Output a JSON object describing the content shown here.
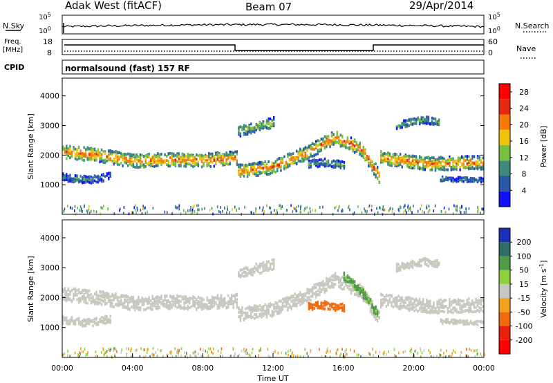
{
  "header": {
    "station": "Adak West (fitACF)",
    "beam": "Beam 07",
    "date": "29/Apr/2014"
  },
  "noise_panel": {
    "left_label": "N.Sky",
    "right_label": "N.Search",
    "left_ticks": [
      "10^5",
      "10^0"
    ],
    "right_ticks": [
      "10^5",
      "10^0"
    ]
  },
  "freq_panel": {
    "left_label_1": "Freq.",
    "left_label_2": "[MHz]",
    "right_label": "Nave",
    "left_ticks": [
      "18",
      "8"
    ],
    "right_ticks": [
      "60",
      "0"
    ]
  },
  "cpid_panel": {
    "label": "CPID",
    "value": "normalsound (fast) 157 RF"
  },
  "time_axis": {
    "title": "Time UT",
    "ticks": [
      "00:00",
      "04:00",
      "08:00",
      "12:00",
      "16:00",
      "20:00",
      "00:00"
    ]
  },
  "chart_data": [
    {
      "type": "heatmap",
      "title": "",
      "xlabel": "Time UT",
      "ylabel": "Slant Range [km]",
      "xlim": [
        0,
        24
      ],
      "ylim": [
        0,
        4600
      ],
      "yticks": [
        "1000",
        "2000",
        "3000",
        "4000"
      ],
      "colorbar": {
        "label": "Power [dB]",
        "ticks": [
          "4",
          "8",
          "12",
          "16",
          "20",
          "24",
          "28"
        ],
        "range": [
          0,
          30
        ]
      },
      "colors": [
        "#1010ff",
        "#2a57a8",
        "#3d8a7c",
        "#79bf3e",
        "#f3c20d",
        "#f57a0a",
        "#e62a10",
        "#ff0000"
      ],
      "bands": [
        {
          "name": "main",
          "start": 0.0,
          "end": 24.0,
          "center": [
            [
              0,
              2100
            ],
            [
              2,
              2000
            ],
            [
              4,
              1800
            ],
            [
              6,
              1850
            ],
            [
              8,
              1820
            ],
            [
              9.9,
              1900
            ],
            [
              10,
              1450
            ],
            [
              12,
              1600
            ],
            [
              14,
              2100
            ],
            [
              15.5,
              2600
            ],
            [
              17,
              2200
            ],
            [
              18,
              1300
            ],
            [
              18.1,
              1900
            ],
            [
              21,
              1700
            ],
            [
              24,
              1750
            ]
          ],
          "width": 450,
          "power": 22
        },
        {
          "name": "lower",
          "start": 0.0,
          "end": 2.8,
          "center": [
            [
              0,
              1250
            ],
            [
              1.5,
              1150
            ],
            [
              2.8,
              1300
            ]
          ],
          "width": 250,
          "power": 9
        },
        {
          "name": "lower-late",
          "start": 21.5,
          "end": 24.0,
          "center": [
            [
              21.5,
              1200
            ],
            [
              24,
              1150
            ]
          ],
          "width": 150,
          "power": 8
        },
        {
          "name": "upper-late",
          "start": 19.0,
          "end": 21.5,
          "center": [
            [
              19,
              3000
            ],
            [
              20.5,
              3200
            ],
            [
              21.5,
              3100
            ]
          ],
          "width": 250,
          "power": 12
        },
        {
          "name": "upper-morning",
          "start": 10.0,
          "end": 12.0,
          "center": [
            [
              10,
              2800
            ],
            [
              12,
              3100
            ]
          ],
          "width": 350,
          "power": 14
        },
        {
          "name": "patches",
          "start": 14.0,
          "end": 16.0,
          "center": [
            [
              14,
              1700
            ],
            [
              15,
              1750
            ],
            [
              16,
              1650
            ]
          ],
          "width": 250,
          "power": 10
        }
      ]
    },
    {
      "type": "heatmap",
      "title": "",
      "xlabel": "Time UT",
      "ylabel": "Slant Range [km]",
      "xlim": [
        0,
        24
      ],
      "ylim": [
        0,
        4600
      ],
      "yticks": [
        "1000",
        "2000",
        "3000",
        "4000"
      ],
      "colorbar": {
        "label": "Velocity [m s^-1]",
        "ticks": [
          "200",
          "100",
          "50",
          "15",
          "-15",
          "-50",
          "-100",
          "-200"
        ],
        "range": [
          -250,
          250
        ]
      },
      "colors": [
        "#1b2fb8",
        "#2f6e66",
        "#4e9c45",
        "#8fd13a",
        "#c8c8c0",
        "#f2a01e",
        "#f26a0e",
        "#e8200c",
        "#ff0000"
      ],
      "bands": [
        {
          "name": "main",
          "start": 0.0,
          "end": 24.0,
          "center": [
            [
              0,
              2100
            ],
            [
              2,
              2000
            ],
            [
              4,
              1800
            ],
            [
              6,
              1850
            ],
            [
              8,
              1820
            ],
            [
              9.9,
              1900
            ],
            [
              10,
              1450
            ],
            [
              12,
              1600
            ],
            [
              14,
              2100
            ],
            [
              15.5,
              2600
            ],
            [
              17,
              2200
            ],
            [
              18,
              1300
            ],
            [
              18.1,
              1900
            ],
            [
              21,
              1700
            ],
            [
              24,
              1750
            ]
          ],
          "width": 450,
          "velocity": 0
        },
        {
          "name": "lower",
          "start": 0.0,
          "end": 2.8,
          "center": [
            [
              0,
              1250
            ],
            [
              1.5,
              1150
            ],
            [
              2.8,
              1300
            ]
          ],
          "width": 250,
          "velocity": 0
        },
        {
          "name": "lower-late",
          "start": 21.5,
          "end": 24.0,
          "center": [
            [
              21.5,
              1200
            ],
            [
              24,
              1150
            ]
          ],
          "width": 150,
          "velocity": 0
        },
        {
          "name": "upper-late",
          "start": 19.0,
          "end": 21.5,
          "center": [
            [
              19,
              3000
            ],
            [
              20.5,
              3200
            ],
            [
              21.5,
              3100
            ]
          ],
          "width": 250,
          "velocity": 0
        },
        {
          "name": "upper-morning",
          "start": 10.0,
          "end": 12.0,
          "center": [
            [
              10,
              2800
            ],
            [
              12,
              3100
            ]
          ],
          "width": 350,
          "velocity": 0
        },
        {
          "name": "patches",
          "start": 14.0,
          "end": 16.0,
          "center": [
            [
              14,
              1700
            ],
            [
              15,
              1750
            ],
            [
              16,
              1650
            ]
          ],
          "width": 250,
          "velocity": -80
        },
        {
          "name": "green-streak",
          "start": 16.0,
          "end": 18.0,
          "center": [
            [
              16,
              2700
            ],
            [
              17,
              2200
            ],
            [
              18,
              1400
            ]
          ],
          "width": 300,
          "velocity": 60
        }
      ]
    }
  ]
}
